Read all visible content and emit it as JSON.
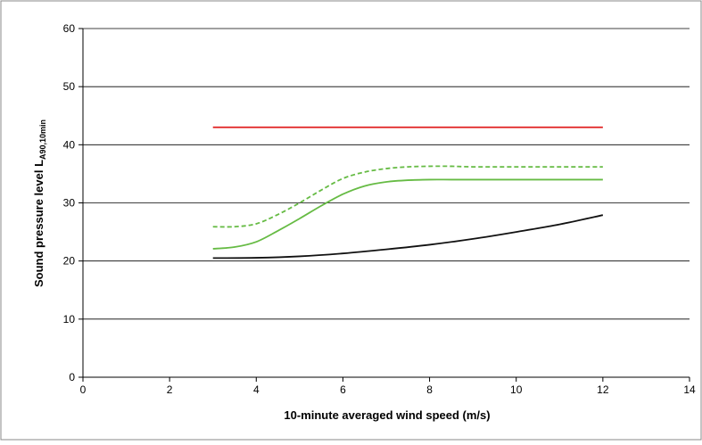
{
  "chart_data": {
    "type": "line",
    "title": "",
    "xlabel": "10-minute averaged wind speed (m/s)",
    "ylabel": {
      "main": "Sound pressure level L",
      "subscript": "A90,10min"
    },
    "xlim": [
      0,
      14
    ],
    "ylim": [
      0,
      60
    ],
    "xticks": [
      0,
      2,
      4,
      6,
      8,
      10,
      12,
      14
    ],
    "yticks": [
      0,
      10,
      20,
      30,
      40,
      50,
      60
    ],
    "grid": {
      "horizontal": true,
      "vertical": false
    },
    "legend": "none",
    "series": [
      {
        "color": "#e02020",
        "dash": "solid",
        "x": [
          3,
          12
        ],
        "y": [
          43,
          43
        ]
      },
      {
        "color": "#66bb44",
        "dash": "dashed",
        "x": [
          3,
          3.5,
          4,
          4.5,
          5,
          5.5,
          6,
          6.5,
          7,
          7.5,
          8,
          8.5,
          9,
          10,
          11,
          12
        ],
        "y": [
          25.9,
          25.9,
          26.4,
          28.0,
          30.0,
          32.2,
          34.2,
          35.3,
          35.9,
          36.2,
          36.3,
          36.3,
          36.2,
          36.2,
          36.2,
          36.2
        ]
      },
      {
        "color": "#66bb44",
        "dash": "solid",
        "x": [
          3,
          3.5,
          4,
          4.5,
          5,
          5.5,
          6,
          6.5,
          7,
          7.5,
          8,
          8.5,
          9,
          10,
          11,
          12
        ],
        "y": [
          22.1,
          22.4,
          23.3,
          25.2,
          27.3,
          29.5,
          31.5,
          32.9,
          33.6,
          33.9,
          34.0,
          34.0,
          34.0,
          34.0,
          34.0,
          34.0
        ]
      },
      {
        "color": "#111111",
        "dash": "solid",
        "x": [
          3,
          4,
          5,
          6,
          7,
          8,
          9,
          10,
          11,
          12
        ],
        "y": [
          20.5,
          20.55,
          20.8,
          21.3,
          22.0,
          22.8,
          23.8,
          25.0,
          26.3,
          27.9
        ]
      }
    ]
  }
}
